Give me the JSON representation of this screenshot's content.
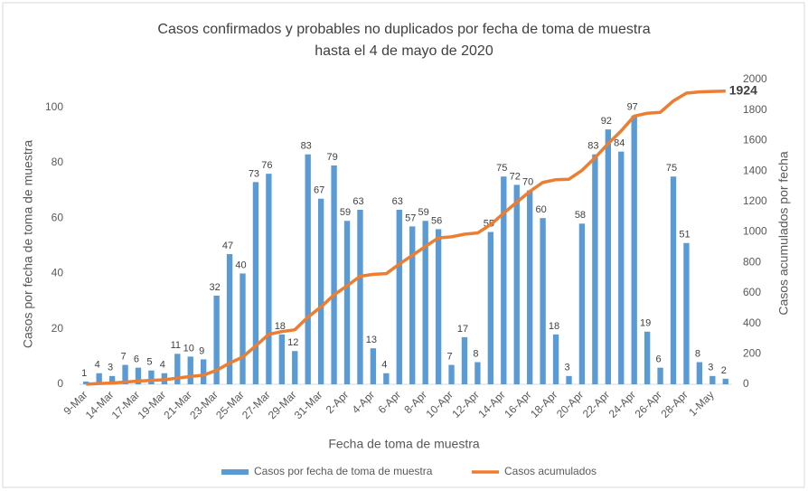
{
  "chart_data": {
    "type": "bar_line",
    "title": "Casos confirmados y probables no duplicados por fecha de toma de muestra",
    "subtitle": "hasta el 4 de mayo de 2020",
    "x_label": "Fecha de toma de muestra",
    "y_label": "Casos por fecha de toma de muestra",
    "y2_label": "Casos acumulados por fecha",
    "categories": [
      "9-Mar",
      null,
      "14-Mar",
      null,
      "17-Mar",
      null,
      "19-Mar",
      null,
      "21-Mar",
      null,
      "23-Mar",
      null,
      "25-Mar",
      null,
      "27-Mar",
      null,
      "29-Mar",
      null,
      "31-Mar",
      null,
      "2-Apr",
      null,
      "4-Apr",
      null,
      "6-Apr",
      null,
      "8-Apr",
      null,
      "10-Apr",
      null,
      "12-Apr",
      null,
      "14-Apr",
      null,
      "16-Apr",
      null,
      "18-Apr",
      null,
      "20-Apr",
      null,
      "22-Apr",
      null,
      "24-Apr",
      null,
      "26-Apr",
      null,
      "28-Apr",
      null,
      "1-May",
      null
    ],
    "series": [
      {
        "name": "Casos por fecha de toma de muestra",
        "color": "#5b9bd5",
        "type": "bar",
        "axis": "y",
        "values": [
          1,
          4,
          3,
          7,
          6,
          5,
          4,
          11,
          10,
          9,
          32,
          47,
          40,
          73,
          76,
          18,
          12,
          83,
          67,
          79,
          59,
          63,
          13,
          4,
          63,
          57,
          59,
          56,
          7,
          17,
          8,
          55,
          75,
          72,
          70,
          60,
          18,
          3,
          58,
          83,
          92,
          84,
          97,
          19,
          6,
          75,
          51,
          8,
          3,
          2
        ]
      },
      {
        "name": "Casos acumulados",
        "color": "#ed7d31",
        "type": "line",
        "axis": "y2",
        "values": [
          1,
          5,
          8,
          15,
          21,
          26,
          30,
          41,
          51,
          60,
          92,
          139,
          179,
          252,
          328,
          346,
          358,
          441,
          508,
          587,
          646,
          709,
          722,
          726,
          789,
          846,
          905,
          961,
          968,
          985,
          993,
          1048,
          1123,
          1195,
          1265,
          1325,
          1343,
          1346,
          1404,
          1487,
          1579,
          1663,
          1760,
          1779,
          1785,
          1860,
          1911,
          1919,
          1922,
          1924
        ]
      }
    ],
    "ylim": [
      0,
      110
    ],
    "yticks": [
      0,
      20,
      40,
      60,
      80,
      100
    ],
    "y2lim": [
      0,
      2000
    ],
    "y2ticks": [
      0,
      200,
      400,
      600,
      800,
      1000,
      1200,
      1400,
      1600,
      1800,
      2000
    ],
    "grid": false,
    "legend": "bottom"
  }
}
